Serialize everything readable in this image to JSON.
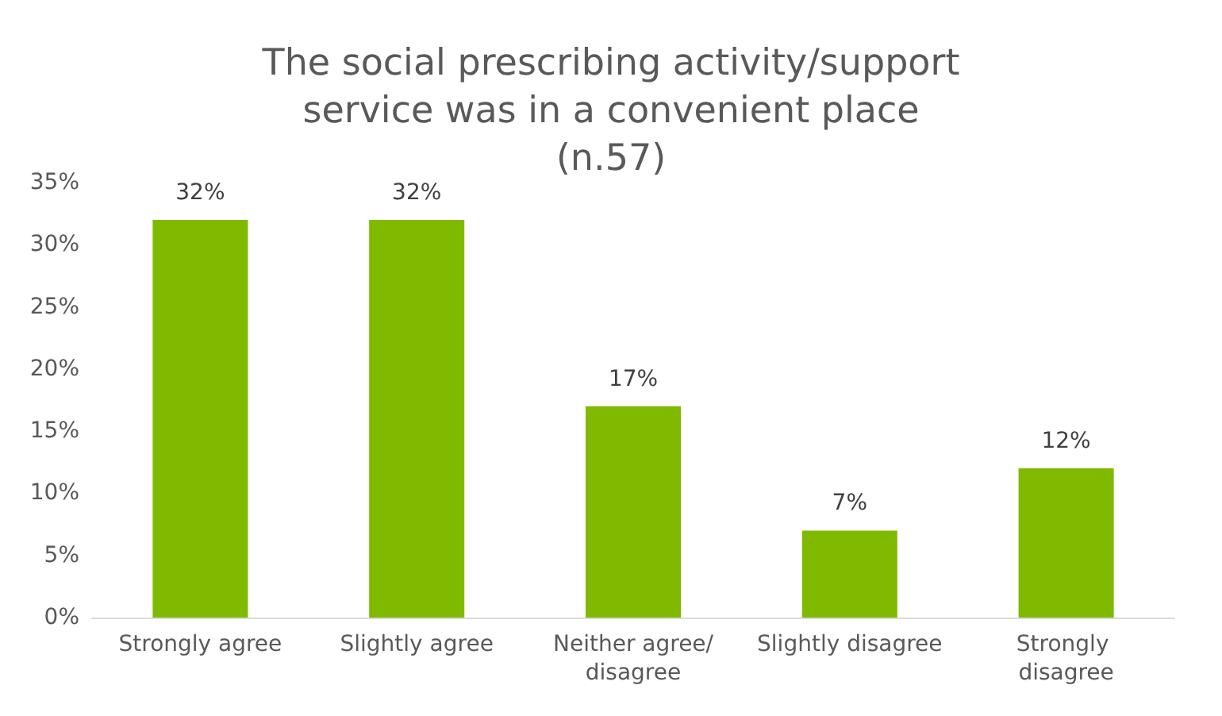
{
  "chart_data": {
    "type": "bar",
    "title": "The social prescribing activity/support service was in a convenient place (n.57)",
    "categories": [
      "Strongly agree",
      "Slightly agree",
      "Neither agree/disagree",
      "Slightly disagree",
      "Strongly disagree"
    ],
    "values": [
      32,
      32,
      17,
      7,
      12
    ],
    "value_labels": [
      "32%",
      "32%",
      "17%",
      "7%",
      "12%"
    ],
    "color": "#7fba00",
    "ylim": [
      0,
      35
    ],
    "yticks": [
      {
        "value": 0,
        "label": "0%"
      },
      {
        "value": 5,
        "label": "5%"
      },
      {
        "value": 10,
        "label": "10%"
      },
      {
        "value": 15,
        "label": "15%"
      },
      {
        "value": 20,
        "label": "20%"
      },
      {
        "value": 25,
        "label": "25%"
      },
      {
        "value": 30,
        "label": "30%"
      },
      {
        "value": 35,
        "label": "35%"
      }
    ],
    "grid": false
  }
}
